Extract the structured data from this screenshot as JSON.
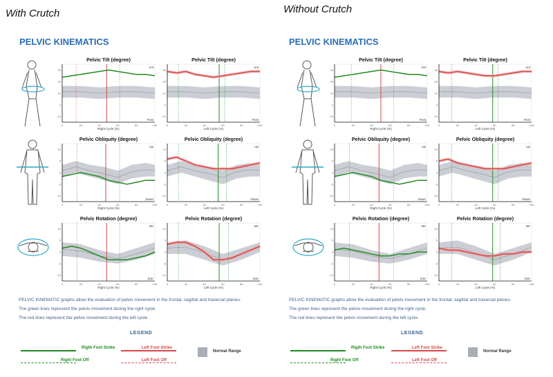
{
  "colors": {
    "right": "#1e8a1e",
    "left": "#d44848",
    "left_band": "#f2a0a4",
    "normal": "#b9bec6",
    "title_blue": "#2a6db5",
    "text_blue": "#3a5f8a"
  },
  "panels": [
    {
      "heading": "With Crutch",
      "section_title": "PELVIC KINEMATICS"
    },
    {
      "heading": "Without Crutch",
      "section_title": "PELVIC KINEMATICS"
    }
  ],
  "description": [
    "PELVIC KINEMATIC graphs allow the evaluation of pelvis movement in the frontal, sagittal and traversal planes.",
    "The green lines represent the pelvis movement during the right cycle.",
    "The red lines represent the pelvis movement during the left cycle."
  ],
  "legend": {
    "title": "LEGEND",
    "right_strike": "Rigth Foot Strike",
    "left_strike": "Left Foot Strike",
    "right_off": "Right Foot Off",
    "left_off": "Left Foot Off",
    "normal": "Normal Range"
  },
  "figure_icons": [
    "walking-figure-icon",
    "front-body-figure-icon",
    "top-view-figure-icon"
  ],
  "chart_data": [
    {
      "type": "line",
      "panel": "With Crutch",
      "title": "Pelvic Tilt (degree)",
      "side": "right",
      "xlabel": "Right Cycle (%)",
      "top_label": "Ant",
      "bottom_label": "Post",
      "xlim": [
        0,
        100
      ],
      "ylim": [
        -10,
        30
      ],
      "xticks": [
        "0",
        "20",
        "40",
        "60",
        "80",
        "100"
      ],
      "yticks": [
        "30",
        "20",
        "10",
        "0",
        "-10"
      ],
      "series": [
        {
          "color": "right",
          "x": [
            0,
            10,
            20,
            30,
            40,
            50,
            60,
            70,
            80,
            90,
            100
          ],
          "y": [
            21,
            22,
            23,
            24,
            25,
            26,
            25,
            24,
            23,
            23,
            22
          ]
        }
      ],
      "normal": {
        "x": [
          0,
          20,
          40,
          60,
          80,
          100
        ],
        "upper": [
          15,
          15,
          14,
          15,
          15,
          14
        ],
        "lower": [
          7,
          7,
          6,
          7,
          7,
          6
        ]
      },
      "strike": 48,
      "foot_off": [
        15,
        62
      ]
    },
    {
      "type": "line",
      "panel": "With Crutch",
      "title": "Pelvic Tilt (degree)",
      "side": "left",
      "xlabel": "Left Cycle (%)",
      "top_label": "Ant",
      "bottom_label": "Post",
      "xlim": [
        0,
        100
      ],
      "ylim": [
        -10,
        30
      ],
      "xticks": [
        "0",
        "20",
        "40",
        "60",
        "80",
        "100"
      ],
      "yticks": [
        "30",
        "20",
        "10",
        "0",
        "-10"
      ],
      "series": [
        {
          "color": "left",
          "x": [
            0,
            10,
            20,
            30,
            40,
            50,
            60,
            70,
            80,
            90,
            100
          ],
          "y": [
            25,
            24,
            25,
            23,
            22,
            21,
            22,
            23,
            24,
            25,
            25
          ]
        }
      ],
      "normal": {
        "x": [
          0,
          20,
          40,
          60,
          80,
          100
        ],
        "upper": [
          15,
          15,
          14,
          15,
          15,
          14
        ],
        "lower": [
          7,
          7,
          6,
          7,
          7,
          6
        ]
      },
      "strike": 56,
      "foot_off": [
        12,
        62
      ]
    },
    {
      "type": "line",
      "panel": "With Crutch",
      "title": "Pelvic Obliquity (degree)",
      "side": "right",
      "xlabel": "Right Cycle (%)",
      "top_label": "Up",
      "bottom_label": "Down",
      "xlim": [
        0,
        100
      ],
      "ylim": [
        -15,
        15
      ],
      "xticks": [
        "0",
        "20",
        "40",
        "60",
        "80",
        "100"
      ],
      "yticks": [
        "10",
        "5",
        "0",
        "-5",
        "-10"
      ],
      "series": [
        {
          "color": "right",
          "x": [
            0,
            10,
            20,
            30,
            40,
            50,
            60,
            70,
            80,
            90,
            100
          ],
          "y": [
            -2,
            -1,
            0,
            -1,
            -2,
            -4,
            -5,
            -6,
            -5,
            -4,
            -4
          ]
        }
      ],
      "normal": {
        "x": [
          0,
          15,
          30,
          45,
          60,
          75,
          90,
          100
        ],
        "upper": [
          4,
          6,
          4,
          3,
          1,
          4,
          5,
          4
        ],
        "lower": [
          -2,
          0,
          -2,
          -4,
          -6,
          -3,
          -2,
          -2
        ]
      },
      "strike": 47,
      "foot_off": [
        16,
        62
      ]
    },
    {
      "type": "line",
      "panel": "With Crutch",
      "title": "Pelvic Obliquity (degree)",
      "side": "left",
      "xlabel": "Left Cycle (%)",
      "top_label": "Up",
      "bottom_label": "Down",
      "xlim": [
        0,
        100
      ],
      "ylim": [
        -15,
        15
      ],
      "xticks": [
        "0",
        "20",
        "40",
        "60",
        "80",
        "100"
      ],
      "yticks": [
        "10",
        "5",
        "0",
        "-5",
        "-10"
      ],
      "series": [
        {
          "color": "left",
          "x": [
            0,
            10,
            20,
            30,
            40,
            50,
            60,
            70,
            80,
            90,
            100
          ],
          "y": [
            7,
            8,
            6,
            4,
            3,
            2,
            2,
            2,
            3,
            4,
            5
          ]
        }
      ],
      "normal": {
        "x": [
          0,
          15,
          30,
          45,
          60,
          75,
          90,
          100
        ],
        "upper": [
          4,
          6,
          4,
          3,
          1,
          4,
          5,
          4
        ],
        "lower": [
          -2,
          0,
          -2,
          -4,
          -6,
          -3,
          -2,
          -2
        ]
      },
      "strike": 55,
      "foot_off": [
        12,
        64
      ]
    },
    {
      "type": "line",
      "panel": "With Crutch",
      "title": "Pelvic Rotation (degree)",
      "side": "right",
      "xlabel": "Right Cycle (%)",
      "top_label": "Intr",
      "bottom_label": "Extr",
      "xlim": [
        0,
        100
      ],
      "ylim": [
        -15,
        15
      ],
      "xticks": [
        "0",
        "20",
        "40",
        "60",
        "80",
        "100"
      ],
      "yticks": [
        "10",
        "5",
        "0",
        "-5",
        "-10"
      ],
      "series": [
        {
          "color": "right",
          "x": [
            0,
            10,
            20,
            30,
            40,
            50,
            60,
            70,
            80,
            90,
            100
          ],
          "y": [
            2,
            3,
            2,
            0,
            -2,
            -4,
            -4,
            -4,
            -3,
            -2,
            0
          ]
        }
      ],
      "normal": {
        "x": [
          0,
          20,
          40,
          60,
          80,
          100
        ],
        "upper": [
          5,
          4,
          1,
          -1,
          2,
          5
        ],
        "lower": [
          -2,
          -3,
          -5,
          -6,
          -4,
          -1
        ]
      },
      "strike": 48,
      "foot_off": [
        16,
        62
      ]
    },
    {
      "type": "line",
      "panel": "With Crutch",
      "title": "Pelvic Rotation (degree)",
      "side": "left",
      "xlabel": "Left Cycle (%)",
      "top_label": "Intr",
      "bottom_label": "Extr",
      "xlim": [
        0,
        100
      ],
      "ylim": [
        -15,
        15
      ],
      "xticks": [
        "0",
        "20",
        "40",
        "60",
        "80",
        "100"
      ],
      "yticks": [
        "10",
        "5",
        "0",
        "-5",
        "-10"
      ],
      "series": [
        {
          "color": "left",
          "x": [
            0,
            10,
            20,
            30,
            40,
            50,
            60,
            70,
            80,
            90,
            100
          ],
          "y": [
            4,
            5,
            5,
            3,
            0,
            -4,
            -4,
            -3,
            -1,
            1,
            3
          ]
        }
      ],
      "normal": {
        "x": [
          0,
          20,
          40,
          60,
          80,
          100
        ],
        "upper": [
          5,
          6,
          3,
          -1,
          2,
          5
        ],
        "lower": [
          -1,
          -1,
          -4,
          -7,
          -4,
          0
        ]
      },
      "strike": 56,
      "foot_off": [
        12,
        66
      ]
    },
    {
      "type": "line",
      "panel": "Without Crutch",
      "title": "Pelvic Tilt (degree)",
      "side": "right",
      "xlabel": "Right Cycle (%)",
      "top_label": "Ant",
      "bottom_label": "Post",
      "xlim": [
        0,
        100
      ],
      "ylim": [
        -10,
        30
      ],
      "xticks": [
        "0",
        "20",
        "40",
        "60",
        "80",
        "100"
      ],
      "yticks": [
        "30",
        "20",
        "10",
        "0",
        "-10"
      ],
      "series": [
        {
          "color": "right",
          "x": [
            0,
            10,
            20,
            30,
            40,
            50,
            60,
            70,
            80,
            90,
            100
          ],
          "y": [
            21,
            22,
            23,
            24,
            25,
            26,
            25,
            24,
            23,
            23,
            22
          ]
        }
      ],
      "normal": {
        "x": [
          0,
          20,
          40,
          60,
          80,
          100
        ],
        "upper": [
          15,
          15,
          14,
          15,
          15,
          14
        ],
        "lower": [
          7,
          7,
          6,
          7,
          7,
          6
        ]
      },
      "strike": 50,
      "foot_off": [
        18,
        64
      ]
    },
    {
      "type": "line",
      "panel": "Without Crutch",
      "title": "Pelvic Tilt (degree)",
      "side": "left",
      "xlabel": "Left Cycle (%)",
      "top_label": "Ant",
      "bottom_label": "Post",
      "xlim": [
        0,
        100
      ],
      "ylim": [
        -10,
        30
      ],
      "xticks": [
        "0",
        "20",
        "40",
        "60",
        "80",
        "100"
      ],
      "yticks": [
        "30",
        "20",
        "10",
        "0",
        "-10"
      ],
      "series": [
        {
          "color": "left",
          "x": [
            0,
            10,
            20,
            30,
            40,
            50,
            60,
            70,
            80,
            90,
            100
          ],
          "y": [
            25,
            24,
            25,
            24,
            23,
            22,
            22,
            23,
            24,
            25,
            25
          ]
        }
      ],
      "normal": {
        "x": [
          0,
          20,
          40,
          60,
          80,
          100
        ],
        "upper": [
          15,
          15,
          14,
          15,
          15,
          14
        ],
        "lower": [
          7,
          7,
          6,
          7,
          7,
          6
        ]
      },
      "strike": 58,
      "foot_off": [
        14,
        64
      ]
    },
    {
      "type": "line",
      "panel": "Without Crutch",
      "title": "Pelvic Obliquity (degree)",
      "side": "right",
      "xlabel": "Right Cycle (%)",
      "top_label": "Up",
      "bottom_label": "Down",
      "xlim": [
        0,
        100
      ],
      "ylim": [
        -15,
        15
      ],
      "xticks": [
        "0",
        "20",
        "40",
        "60",
        "80",
        "100"
      ],
      "yticks": [
        "10",
        "5",
        "0",
        "-5",
        "-10"
      ],
      "series": [
        {
          "color": "right",
          "x": [
            0,
            10,
            20,
            30,
            40,
            50,
            60,
            70,
            80,
            90,
            100
          ],
          "y": [
            -2,
            -1,
            0,
            -1,
            -2,
            -4,
            -5,
            -6,
            -5,
            -4,
            -4
          ]
        }
      ],
      "normal": {
        "x": [
          0,
          15,
          30,
          45,
          60,
          75,
          90,
          100
        ],
        "upper": [
          4,
          6,
          4,
          3,
          1,
          4,
          5,
          4
        ],
        "lower": [
          -2,
          0,
          -2,
          -4,
          -6,
          -3,
          -2,
          -2
        ]
      },
      "strike": 48,
      "foot_off": [
        16,
        64
      ]
    },
    {
      "type": "line",
      "panel": "Without Crutch",
      "title": "Pelvic Obliquity (degree)",
      "side": "left",
      "xlabel": "Left Cycle (%)",
      "top_label": "Up",
      "bottom_label": "Down",
      "xlim": [
        0,
        100
      ],
      "ylim": [
        -15,
        15
      ],
      "xticks": [
        "0",
        "20",
        "40",
        "60",
        "80",
        "100"
      ],
      "yticks": [
        "10",
        "5",
        "0",
        "-5",
        "-10"
      ],
      "series": [
        {
          "color": "left",
          "x": [
            0,
            10,
            20,
            30,
            40,
            50,
            60,
            70,
            80,
            90,
            100
          ],
          "y": [
            6,
            7,
            5,
            4,
            3,
            2,
            2,
            2,
            3,
            4,
            5
          ]
        }
      ],
      "normal": {
        "x": [
          0,
          15,
          30,
          45,
          60,
          75,
          90,
          100
        ],
        "upper": [
          4,
          6,
          4,
          3,
          1,
          4,
          5,
          4
        ],
        "lower": [
          -2,
          0,
          -2,
          -4,
          -6,
          -3,
          -2,
          -2
        ]
      },
      "strike": 58,
      "foot_off": [
        14,
        64
      ]
    },
    {
      "type": "line",
      "panel": "Without Crutch",
      "title": "Pelvic Rotation (degree)",
      "side": "right",
      "xlabel": "Right Cycle (%)",
      "top_label": "Intr",
      "bottom_label": "Extr",
      "xlim": [
        0,
        100
      ],
      "ylim": [
        -15,
        15
      ],
      "xticks": [
        "0",
        "20",
        "40",
        "60",
        "80",
        "100"
      ],
      "yticks": [
        "10",
        "5",
        "0",
        "-5",
        "-10"
      ],
      "series": [
        {
          "color": "right",
          "x": [
            0,
            10,
            20,
            30,
            40,
            50,
            60,
            70,
            80,
            90,
            100
          ],
          "y": [
            1,
            2,
            1,
            0,
            -1,
            -2,
            -2,
            -1,
            -1,
            0,
            0
          ]
        }
      ],
      "normal": {
        "x": [
          0,
          20,
          40,
          60,
          80,
          100
        ],
        "upper": [
          5,
          4,
          1,
          -1,
          2,
          5
        ],
        "lower": [
          -2,
          -3,
          -5,
          -6,
          -4,
          -1
        ]
      },
      "strike": 48,
      "foot_off": [
        16,
        64
      ]
    },
    {
      "type": "line",
      "panel": "Without Crutch",
      "title": "Pelvic Rotation (degree)",
      "side": "left",
      "xlabel": "Left Cycle (%)",
      "top_label": "Intr",
      "bottom_label": "Extr",
      "xlim": [
        0,
        100
      ],
      "ylim": [
        -15,
        15
      ],
      "xticks": [
        "0",
        "20",
        "40",
        "60",
        "80",
        "100"
      ],
      "yticks": [
        "10",
        "5",
        "0",
        "-5",
        "-10"
      ],
      "series": [
        {
          "color": "left",
          "x": [
            0,
            10,
            20,
            30,
            40,
            50,
            60,
            70,
            80,
            90,
            100
          ],
          "y": [
            2,
            1,
            1,
            0,
            -1,
            -2,
            -2,
            -1,
            -1,
            0,
            0
          ]
        }
      ],
      "normal": {
        "x": [
          0,
          20,
          40,
          60,
          80,
          100
        ],
        "upper": [
          5,
          6,
          3,
          -1,
          2,
          5
        ],
        "lower": [
          -1,
          -1,
          -4,
          -7,
          -4,
          0
        ]
      },
      "strike": 58,
      "foot_off": [
        14,
        66
      ]
    }
  ]
}
